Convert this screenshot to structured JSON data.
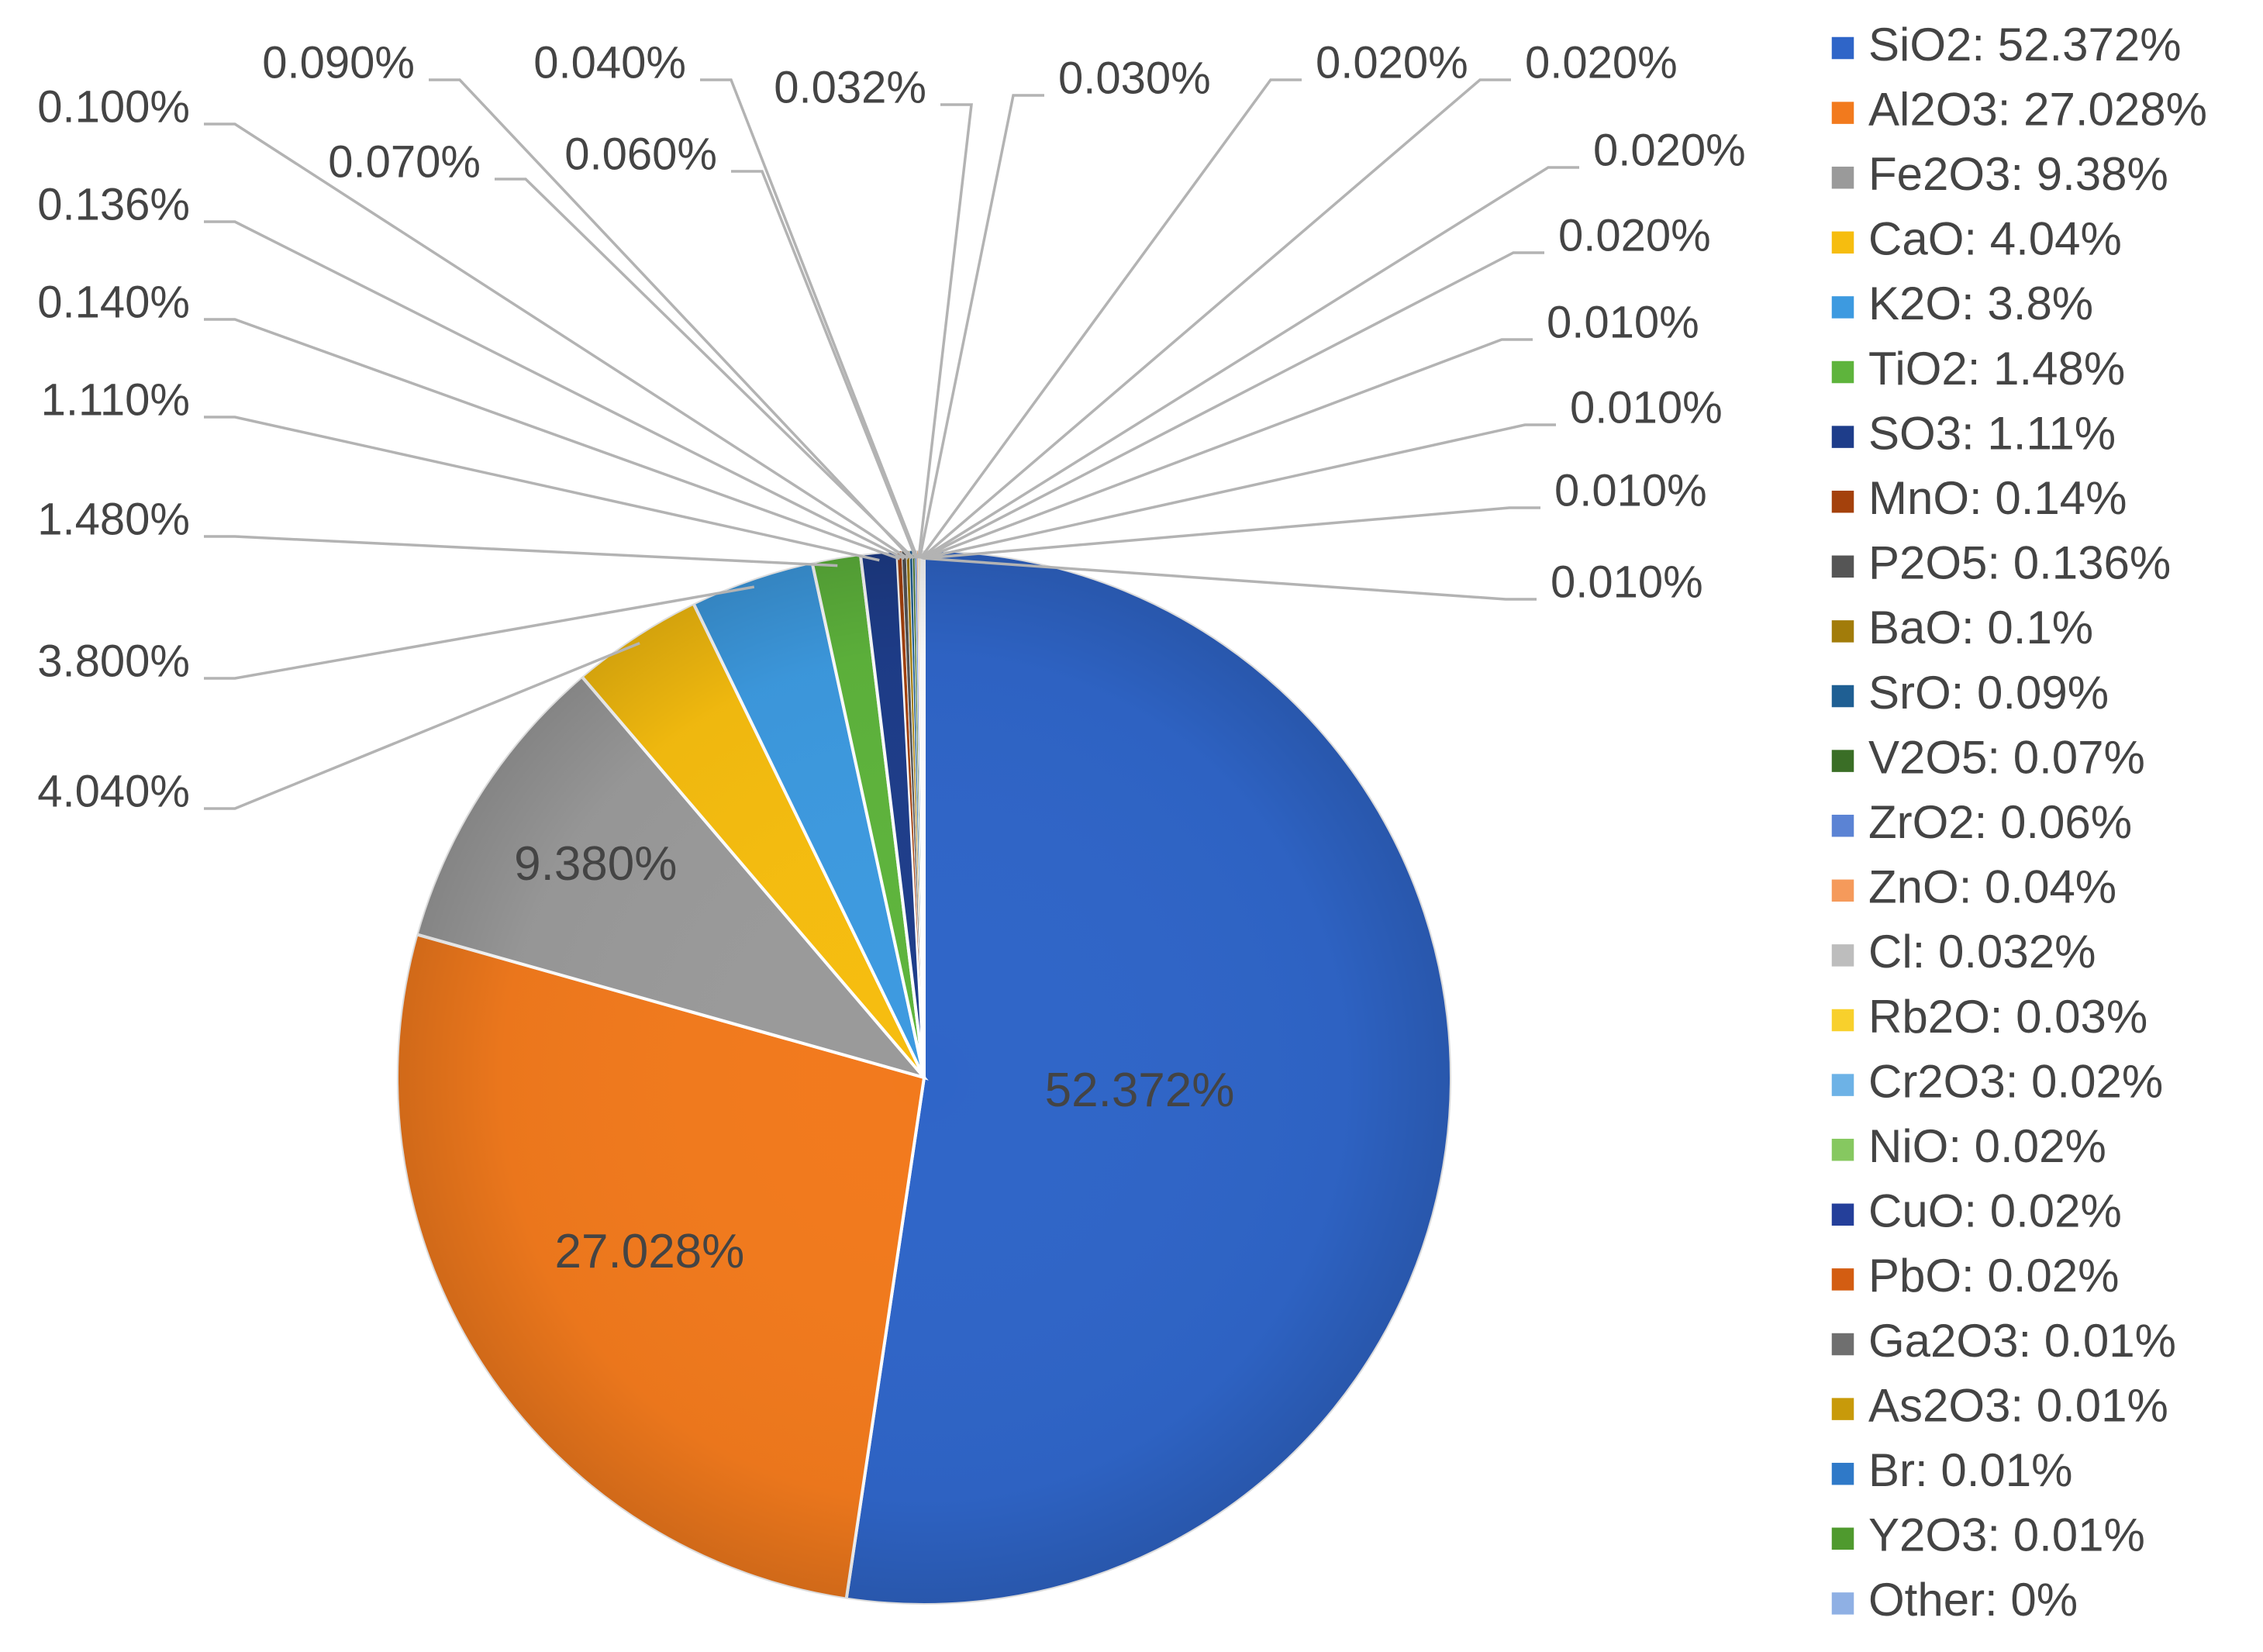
{
  "chart_data": {
    "type": "pie",
    "title": "",
    "legend_position": "right",
    "series": [
      {
        "name": "SiO2",
        "legend": "SiO2: 52.372%",
        "value": 52.372,
        "label": "52.372%",
        "color": "#2f65c8"
      },
      {
        "name": "Al2O3",
        "legend": "Al2O3: 27.028%",
        "value": 27.028,
        "label": "27.028%",
        "color": "#f27a1d"
      },
      {
        "name": "Fe2O3",
        "legend": "Fe2O3: 9.38%",
        "value": 9.38,
        "label": "9.380%",
        "color": "#9a9a9a"
      },
      {
        "name": "CaO",
        "legend": "CaO: 4.04%",
        "value": 4.04,
        "label": "4.040%",
        "color": "#f6bd0f"
      },
      {
        "name": "K2O",
        "legend": "K2O: 3.8%",
        "value": 3.8,
        "label": "3.800%",
        "color": "#3d9ae0"
      },
      {
        "name": "TiO2",
        "legend": "TiO2: 1.48%",
        "value": 1.48,
        "label": "1.480%",
        "color": "#5eb43c"
      },
      {
        "name": "SO3",
        "legend": "SO3: 1.11%",
        "value": 1.11,
        "label": "1.110%",
        "color": "#1e3d8a"
      },
      {
        "name": "MnO",
        "legend": "MnO: 0.14%",
        "value": 0.14,
        "label": "0.140%",
        "color": "#a4410c"
      },
      {
        "name": "P2O5",
        "legend": "P2O5: 0.136%",
        "value": 0.136,
        "label": "0.136%",
        "color": "#555555"
      },
      {
        "name": "BaO",
        "legend": "BaO: 0.1%",
        "value": 0.1,
        "label": "0.100%",
        "color": "#a27c0a"
      },
      {
        "name": "SrO",
        "legend": "SrO: 0.09%",
        "value": 0.09,
        "label": "0.090%",
        "color": "#1f5f93"
      },
      {
        "name": "V2O5",
        "legend": "V2O5: 0.07%",
        "value": 0.07,
        "label": "0.070%",
        "color": "#3a6e26"
      },
      {
        "name": "ZrO2",
        "legend": "ZrO2: 0.06%",
        "value": 0.06,
        "label": "0.060%",
        "color": "#5b83d4"
      },
      {
        "name": "ZnO",
        "legend": "ZnO: 0.04%",
        "value": 0.04,
        "label": "0.040%",
        "color": "#f59a5b"
      },
      {
        "name": "Cl",
        "legend": "Cl: 0.032%",
        "value": 0.032,
        "label": "0.032%",
        "color": "#bdbdbd"
      },
      {
        "name": "Rb2O",
        "legend": "Rb2O: 0.03%",
        "value": 0.03,
        "label": "0.030%",
        "color": "#f8d02c"
      },
      {
        "name": "Cr2O3",
        "legend": "Cr2O3: 0.02%",
        "value": 0.02,
        "label": "0.020%",
        "color": "#6db2e6"
      },
      {
        "name": "NiO",
        "legend": "NiO: 0.02%",
        "value": 0.02,
        "label": "0.020%",
        "color": "#86c860"
      },
      {
        "name": "CuO",
        "legend": "CuO: 0.02%",
        "value": 0.02,
        "label": "0.020%",
        "color": "#243f9a"
      },
      {
        "name": "PbO",
        "legend": "PbO: 0.02%",
        "value": 0.02,
        "label": "0.020%",
        "color": "#d35d12"
      },
      {
        "name": "Ga2O3",
        "legend": "Ga2O3: 0.01%",
        "value": 0.01,
        "label": "0.010%",
        "color": "#6f6f6f"
      },
      {
        "name": "As2O3",
        "legend": "As2O3: 0.01%",
        "value": 0.01,
        "label": "0.010%",
        "color": "#c89a0a"
      },
      {
        "name": "Br",
        "legend": "Br: 0.01%",
        "value": 0.01,
        "label": "0.010%",
        "color": "#2f79c8"
      },
      {
        "name": "Y2O3",
        "legend": "Y2O3: 0.01%",
        "value": 0.01,
        "label": "0.010%",
        "color": "#4f9a2e"
      },
      {
        "name": "Other",
        "legend": "Other: 0%",
        "value": 0,
        "label": "",
        "color": "#8fb0e4"
      }
    ]
  }
}
